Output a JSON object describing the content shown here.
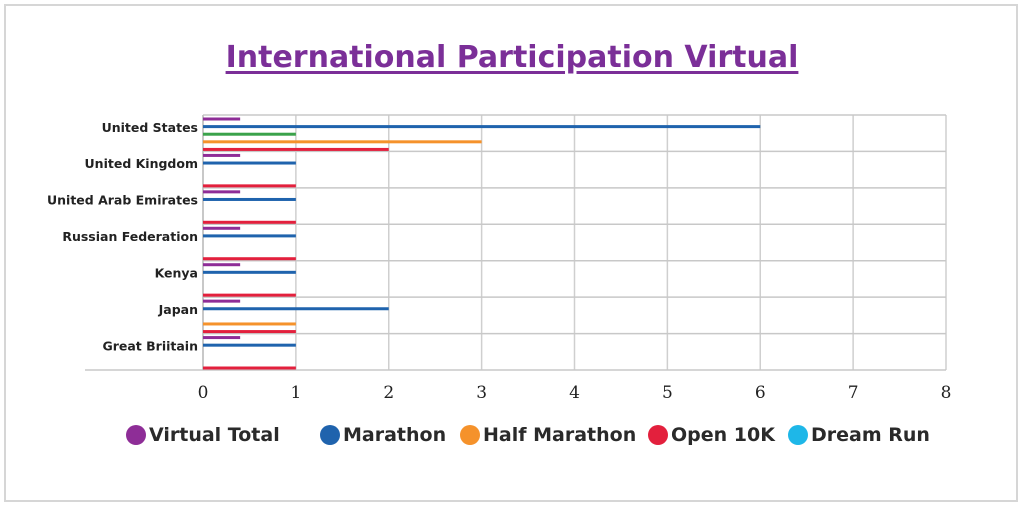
{
  "title": "International Participation Virtual",
  "legend": [
    {
      "label": "Virtual Total",
      "color": "#8e2d97"
    },
    {
      "label": "Marathon",
      "color": "#1f63ad"
    },
    {
      "label": "Half Marathon",
      "color": "#f5922b"
    },
    {
      "label": "Open 10K",
      "color": "#e3203d"
    },
    {
      "label": "Dream Run",
      "color": "#1eb7e8"
    }
  ],
  "chart_data": {
    "type": "bar",
    "orientation": "horizontal",
    "title": "International Participation Virtual",
    "categories": [
      "United States",
      "United Kingdom",
      "United Arab Emirates",
      "Russian Federation",
      "Kenya",
      "Japan",
      "Great Briitain"
    ],
    "xlim": [
      0,
      8
    ],
    "xticks": [
      "0",
      "1",
      "2",
      "3",
      "4",
      "5",
      "6",
      "7",
      "8"
    ],
    "grid": true,
    "legend_position": "bottom",
    "series": [
      {
        "name": "Virtual Total",
        "color": "#8e2d97",
        "values": [
          0.4,
          0.4,
          0.4,
          0.4,
          0.4,
          0.4,
          0.4
        ]
      },
      {
        "name": "Marathon",
        "color": "#1f63ad",
        "values": [
          6,
          1,
          1,
          1,
          1,
          2,
          1
        ]
      },
      {
        "name": "",
        "color": "#3aa24a",
        "values": [
          1,
          0,
          0,
          0,
          0,
          0,
          0
        ]
      },
      {
        "name": "Half Marathon",
        "color": "#f5922b",
        "values": [
          3,
          0,
          0,
          0,
          0,
          1,
          0
        ]
      },
      {
        "name": "Open 10K",
        "color": "#e3203d",
        "values": [
          2,
          1,
          1,
          1,
          1,
          1,
          1
        ]
      }
    ]
  }
}
